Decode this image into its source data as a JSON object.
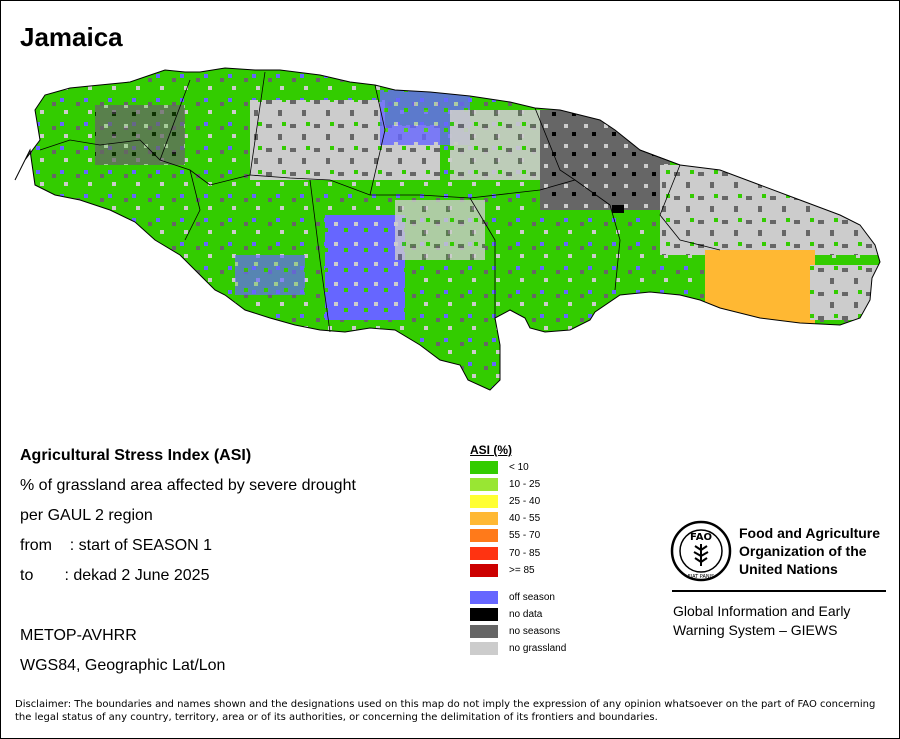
{
  "title": "Jamaica",
  "info": {
    "heading": "Agricultural Stress Index (ASI)",
    "line1": "% of grassland area affected by severe drought",
    "line2": "per GAUL 2 region",
    "from": "from    : start of SEASON 1",
    "to": "to       : dekad 2 June 2025",
    "sensor": "METOP-AVHRR",
    "projection": "WGS84, Geographic Lat/Lon"
  },
  "legend": {
    "title": "ASI (%)",
    "classes": [
      {
        "label": "< 10",
        "color": "#33cc00"
      },
      {
        "label": "10 - 25",
        "color": "#99e633"
      },
      {
        "label": "25 - 40",
        "color": "#ffff33"
      },
      {
        "label": "40 - 55",
        "color": "#ffb833"
      },
      {
        "label": "55 - 70",
        "color": "#ff7a1a"
      },
      {
        "label": "70 - 85",
        "color": "#ff3311"
      },
      {
        "label": ">= 85",
        "color": "#cc0000"
      }
    ],
    "other": [
      {
        "label": "off season",
        "color": "#6666ff"
      },
      {
        "label": "no data",
        "color": "#000000"
      },
      {
        "label": "no seasons",
        "color": "#666666"
      },
      {
        "label": "no grassland",
        "color": "#cccccc"
      }
    ]
  },
  "fao": {
    "logo_letters": "FAO",
    "logo_motto": "FIAT PANIS",
    "name_line1": "Food and Agriculture",
    "name_line2": "Organization of the",
    "name_line3": "United Nations",
    "giews_line1": "Global Information and Early",
    "giews_line2": "Warning System – GIEWS"
  },
  "disclaimer": "Disclaimer: The boundaries and names shown and the designations used on this map do not imply the expression of any opinion whatsoever on the part of FAO concerning the legal status of any country, territory, area or of its authorities, or concerning the delimitation of its frontiers and boundaries.",
  "colors": {
    "green": "#33cc00",
    "offseason": "#6666ff",
    "noseason": "#666666",
    "nograss": "#cccccc",
    "nodata": "#000000",
    "orange": "#ffb833"
  }
}
